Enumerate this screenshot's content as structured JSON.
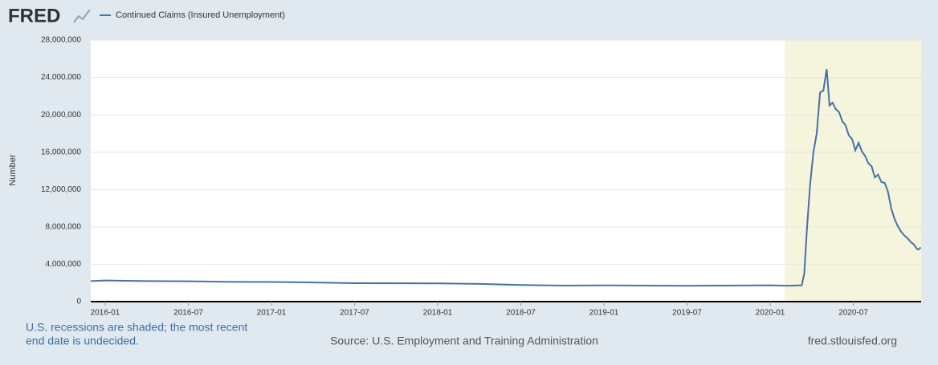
{
  "chart_data": {
    "type": "line",
    "logo": "FRED",
    "y_label": "Number",
    "note": [
      "U.S. recessions are shaded; the most recent",
      "end date is undecided."
    ],
    "source": "Source: U.S. Employment and Training Administration",
    "url": "fred.stlouisfed.org",
    "grid": true,
    "recession_shading": {
      "color": "#f5f4dc",
      "ranges": [
        [
          2020.087,
          2020.908
        ]
      ]
    },
    "xlim": [
      2015.913,
      2020.908
    ],
    "xticks": [
      {
        "value": 2016.0,
        "label": "2016-01"
      },
      {
        "value": 2016.5,
        "label": "2016-07"
      },
      {
        "value": 2017.0,
        "label": "2017-01"
      },
      {
        "value": 2017.5,
        "label": "2017-07"
      },
      {
        "value": 2018.0,
        "label": "2018-01"
      },
      {
        "value": 2018.5,
        "label": "2018-07"
      },
      {
        "value": 2019.0,
        "label": "2019-01"
      },
      {
        "value": 2019.5,
        "label": "2019-07"
      },
      {
        "value": 2020.0,
        "label": "2020-01"
      },
      {
        "value": 2020.5,
        "label": "2020-07"
      }
    ],
    "ylim": [
      0,
      28000000
    ],
    "yticks": [
      0,
      {
        "value": 4000000,
        "label": "4,000,000"
      },
      {
        "value": 8000000,
        "label": "8,000,000"
      },
      {
        "value": 12000000,
        "label": "12,000,000"
      },
      {
        "value": 16000000,
        "label": "16,000,000"
      },
      {
        "value": 20000000,
        "label": "20,000,000"
      },
      {
        "value": 24000000,
        "label": "24,000,000"
      },
      {
        "value": 28000000,
        "label": "28,000,000"
      }
    ],
    "x": [
      2015.913,
      2016.0,
      2016.25,
      2016.5,
      2016.75,
      2017.0,
      2017.25,
      2017.5,
      2017.75,
      2018.0,
      2018.25,
      2018.5,
      2018.75,
      2019.0,
      2019.25,
      2019.5,
      2019.75,
      2020.0,
      2020.1,
      2020.19,
      2020.205,
      2020.22,
      2020.24,
      2020.26,
      2020.28,
      2020.3,
      2020.32,
      2020.34,
      2020.357,
      2020.375,
      2020.395,
      2020.414,
      2020.434,
      2020.453,
      2020.473,
      2020.493,
      2020.512,
      2020.532,
      2020.551,
      2020.571,
      2020.591,
      2020.61,
      2020.63,
      2020.649,
      2020.669,
      2020.689,
      2020.708,
      2020.728,
      2020.747,
      2020.767,
      2020.787,
      2020.806,
      2020.826,
      2020.845,
      2020.865,
      2020.885,
      2020.895,
      2020.905
    ],
    "series": [
      {
        "name": "Continued Claims (Insured Unemployment)",
        "color": "#4572a7",
        "values": [
          2200000,
          2270000,
          2200000,
          2180000,
          2120000,
          2100000,
          2050000,
          1980000,
          1970000,
          1950000,
          1900000,
          1780000,
          1720000,
          1740000,
          1720000,
          1700000,
          1720000,
          1750000,
          1700000,
          1750000,
          3000000,
          7500000,
          12500000,
          16000000,
          18000000,
          22400000,
          22600000,
          24900000,
          21000000,
          21300000,
          20600000,
          20300000,
          19300000,
          18900000,
          17800000,
          17400000,
          16200000,
          17000000,
          16100000,
          15600000,
          14800000,
          14500000,
          13300000,
          13600000,
          12800000,
          12700000,
          11800000,
          10000000,
          8900000,
          8100000,
          7500000,
          7100000,
          6800000,
          6400000,
          6100000,
          5600000,
          5600000,
          5800000
        ]
      }
    ]
  }
}
